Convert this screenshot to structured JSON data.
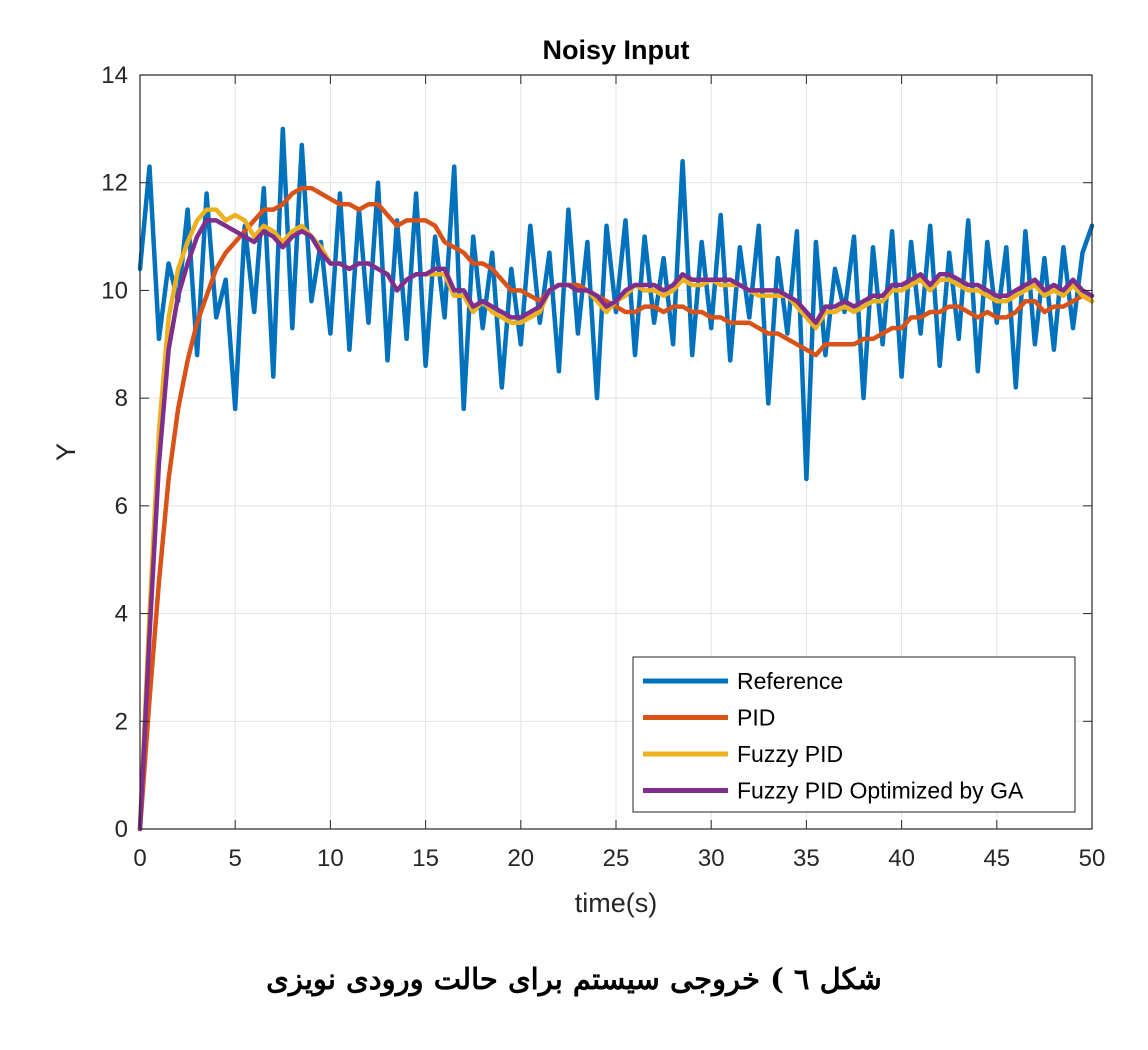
{
  "chart_data": {
    "type": "line",
    "title": "Noisy Input",
    "xlabel": "time(s)",
    "ylabel": "Y",
    "xlim": [
      0,
      50
    ],
    "ylim": [
      0,
      14
    ],
    "xticks": [
      0,
      5,
      10,
      15,
      20,
      25,
      30,
      35,
      40,
      45,
      50
    ],
    "yticks": [
      0,
      2,
      4,
      6,
      8,
      10,
      12,
      14
    ],
    "grid": true,
    "legend_position": "bottom-right",
    "series": [
      {
        "name": "Reference",
        "color": "#0072BD",
        "x": [
          0,
          0.5,
          1,
          1.5,
          2,
          2.5,
          3,
          3.5,
          4,
          4.5,
          5,
          5.5,
          6,
          6.5,
          7,
          7.5,
          8,
          8.5,
          9,
          9.5,
          10,
          10.5,
          11,
          11.5,
          12,
          12.5,
          13,
          13.5,
          14,
          14.5,
          15,
          15.5,
          16,
          16.5,
          17,
          17.5,
          18,
          18.5,
          19,
          19.5,
          20,
          20.5,
          21,
          21.5,
          22,
          22.5,
          23,
          23.5,
          24,
          24.5,
          25,
          25.5,
          26,
          26.5,
          27,
          27.5,
          28,
          28.5,
          29,
          29.5,
          30,
          30.5,
          31,
          31.5,
          32,
          32.5,
          33,
          33.5,
          34,
          34.5,
          35,
          35.5,
          36,
          36.5,
          37,
          37.5,
          38,
          38.5,
          39,
          39.5,
          40,
          40.5,
          41,
          41.5,
          42,
          42.5,
          43,
          43.5,
          44,
          44.5,
          45,
          45.5,
          46,
          46.5,
          47,
          47.5,
          48,
          48.5,
          49,
          49.5,
          50
        ],
        "values": [
          10.4,
          12.3,
          9.1,
          10.5,
          9.8,
          11.5,
          8.8,
          11.8,
          9.5,
          10.2,
          7.8,
          11.2,
          9.6,
          11.9,
          8.4,
          13.0,
          9.3,
          12.7,
          9.8,
          10.9,
          9.2,
          11.8,
          8.9,
          11.5,
          9.4,
          12.0,
          8.7,
          11.3,
          9.1,
          11.8,
          8.6,
          11.0,
          9.5,
          12.3,
          7.8,
          11.0,
          9.3,
          10.7,
          8.2,
          10.4,
          9.0,
          11.2,
          9.4,
          10.7,
          8.5,
          11.5,
          9.2,
          10.9,
          8.0,
          11.2,
          9.6,
          11.3,
          8.8,
          11.0,
          9.4,
          10.6,
          9.0,
          12.4,
          8.8,
          10.9,
          9.3,
          11.4,
          8.7,
          10.8,
          9.5,
          11.2,
          7.9,
          10.6,
          9.2,
          11.1,
          6.5,
          10.9,
          8.8,
          10.4,
          9.6,
          11.0,
          8.0,
          10.8,
          9.0,
          11.1,
          8.4,
          10.9,
          9.2,
          11.2,
          8.6,
          10.7,
          9.1,
          11.3,
          8.5,
          10.9,
          9.4,
          10.8,
          8.2,
          11.1,
          9.0,
          10.6,
          8.9,
          10.8,
          9.3,
          10.7,
          11.2
        ]
      },
      {
        "name": "PID",
        "color": "#D95319",
        "x": [
          0,
          0.5,
          1,
          1.5,
          2,
          2.5,
          3,
          3.5,
          4,
          4.5,
          5,
          5.5,
          6,
          6.5,
          7,
          7.5,
          8,
          8.5,
          9,
          9.5,
          10,
          10.5,
          11,
          11.5,
          12,
          12.5,
          13,
          13.5,
          14,
          14.5,
          15,
          15.5,
          16,
          16.5,
          17,
          17.5,
          18,
          18.5,
          19,
          19.5,
          20,
          20.5,
          21,
          21.5,
          22,
          22.5,
          23,
          23.5,
          24,
          24.5,
          25,
          25.5,
          26,
          26.5,
          27,
          27.5,
          28,
          28.5,
          29,
          29.5,
          30,
          30.5,
          31,
          31.5,
          32,
          32.5,
          33,
          33.5,
          34,
          34.5,
          35,
          35.5,
          36,
          36.5,
          37,
          37.5,
          38,
          38.5,
          39,
          39.5,
          40,
          40.5,
          41,
          41.5,
          42,
          42.5,
          43,
          43.5,
          44,
          44.5,
          45,
          45.5,
          46,
          46.5,
          47,
          47.5,
          48,
          48.5,
          49,
          49.5,
          50
        ],
        "values": [
          0,
          2.4,
          4.6,
          6.5,
          7.8,
          8.7,
          9.4,
          9.9,
          10.4,
          10.7,
          10.9,
          11.1,
          11.3,
          11.5,
          11.5,
          11.6,
          11.8,
          11.9,
          11.9,
          11.8,
          11.7,
          11.6,
          11.6,
          11.5,
          11.6,
          11.6,
          11.4,
          11.2,
          11.3,
          11.3,
          11.3,
          11.2,
          10.9,
          10.8,
          10.7,
          10.5,
          10.5,
          10.4,
          10.2,
          10.0,
          10.0,
          9.9,
          9.8,
          10.0,
          10.1,
          10.1,
          10.1,
          10.0,
          9.9,
          9.8,
          9.7,
          9.6,
          9.6,
          9.7,
          9.7,
          9.6,
          9.7,
          9.7,
          9.6,
          9.6,
          9.5,
          9.5,
          9.4,
          9.4,
          9.4,
          9.3,
          9.2,
          9.2,
          9.1,
          9.0,
          8.9,
          8.8,
          9.0,
          9.0,
          9.0,
          9.0,
          9.1,
          9.1,
          9.2,
          9.3,
          9.3,
          9.5,
          9.5,
          9.6,
          9.6,
          9.7,
          9.7,
          9.6,
          9.5,
          9.6,
          9.5,
          9.5,
          9.6,
          9.8,
          9.8,
          9.6,
          9.7,
          9.7,
          9.8,
          9.9,
          9.8
        ]
      },
      {
        "name": "Fuzzy PID",
        "color": "#EDB120",
        "x": [
          0,
          0.5,
          1,
          1.5,
          2,
          2.5,
          3,
          3.5,
          4,
          4.5,
          5,
          5.5,
          6,
          6.5,
          7,
          7.5,
          8,
          8.5,
          9,
          9.5,
          10,
          10.5,
          11,
          11.5,
          12,
          12.5,
          13,
          13.5,
          14,
          14.5,
          15,
          15.5,
          16,
          16.5,
          17,
          17.5,
          18,
          18.5,
          19,
          19.5,
          20,
          20.5,
          21,
          21.5,
          22,
          22.5,
          23,
          23.5,
          24,
          24.5,
          25,
          25.5,
          26,
          26.5,
          27,
          27.5,
          28,
          28.5,
          29,
          29.5,
          30,
          30.5,
          31,
          31.5,
          32,
          32.5,
          33,
          33.5,
          34,
          34.5,
          35,
          35.5,
          36,
          36.5,
          37,
          37.5,
          38,
          38.5,
          39,
          39.5,
          40,
          40.5,
          41,
          41.5,
          42,
          42.5,
          43,
          43.5,
          44,
          44.5,
          45,
          45.5,
          46,
          46.5,
          47,
          47.5,
          48,
          48.5,
          49,
          49.5,
          50
        ],
        "values": [
          0,
          4.0,
          7.4,
          9.5,
          10.4,
          10.9,
          11.3,
          11.5,
          11.5,
          11.3,
          11.4,
          11.3,
          11.0,
          11.2,
          11.1,
          10.9,
          11.1,
          11.2,
          11.0,
          10.8,
          10.5,
          10.5,
          10.4,
          10.5,
          10.5,
          10.4,
          10.3,
          10.0,
          10.2,
          10.3,
          10.3,
          10.3,
          10.3,
          9.9,
          9.9,
          9.6,
          9.8,
          9.6,
          9.5,
          9.4,
          9.4,
          9.5,
          9.6,
          10.0,
          10.1,
          10.1,
          10.0,
          10.0,
          9.8,
          9.6,
          9.8,
          9.9,
          10.1,
          10.0,
          10.0,
          9.9,
          10.0,
          10.2,
          10.1,
          10.1,
          10.2,
          10.1,
          10.1,
          10.1,
          10.0,
          9.9,
          9.9,
          9.9,
          9.9,
          9.7,
          9.5,
          9.3,
          9.6,
          9.6,
          9.7,
          9.6,
          9.7,
          9.8,
          9.8,
          10.0,
          10.0,
          10.1,
          10.2,
          10.0,
          10.2,
          10.2,
          10.1,
          10.0,
          10.0,
          9.9,
          9.8,
          9.8,
          9.9,
          10.0,
          10.1,
          9.9,
          10.0,
          9.9,
          10.1,
          9.9,
          9.8
        ]
      },
      {
        "name": "Fuzzy PID Optimized by GA",
        "color": "#7E2F8E",
        "x": [
          0,
          0.5,
          1,
          1.5,
          2,
          2.5,
          3,
          3.5,
          4,
          4.5,
          5,
          5.5,
          6,
          6.5,
          7,
          7.5,
          8,
          8.5,
          9,
          9.5,
          10,
          10.5,
          11,
          11.5,
          12,
          12.5,
          13,
          13.5,
          14,
          14.5,
          15,
          15.5,
          16,
          16.5,
          17,
          17.5,
          18,
          18.5,
          19,
          19.5,
          20,
          20.5,
          21,
          21.5,
          22,
          22.5,
          23,
          23.5,
          24,
          24.5,
          25,
          25.5,
          26,
          26.5,
          27,
          27.5,
          28,
          28.5,
          29,
          29.5,
          30,
          30.5,
          31,
          31.5,
          32,
          32.5,
          33,
          33.5,
          34,
          34.5,
          35,
          35.5,
          36,
          36.5,
          37,
          37.5,
          38,
          38.5,
          39,
          39.5,
          40,
          40.5,
          41,
          41.5,
          42,
          42.5,
          43,
          43.5,
          44,
          44.5,
          45,
          45.5,
          46,
          46.5,
          47,
          47.5,
          48,
          48.5,
          49,
          49.5,
          50
        ],
        "values": [
          0,
          3.6,
          6.8,
          8.9,
          9.9,
          10.5,
          11.0,
          11.3,
          11.3,
          11.2,
          11.1,
          11.0,
          10.9,
          11.1,
          11.0,
          10.8,
          11.0,
          11.1,
          11.0,
          10.7,
          10.5,
          10.5,
          10.4,
          10.5,
          10.5,
          10.4,
          10.3,
          10.0,
          10.2,
          10.3,
          10.3,
          10.4,
          10.4,
          10.0,
          10.0,
          9.7,
          9.8,
          9.7,
          9.6,
          9.5,
          9.5,
          9.6,
          9.7,
          10.0,
          10.1,
          10.1,
          10.0,
          10.0,
          9.9,
          9.7,
          9.8,
          10.0,
          10.1,
          10.1,
          10.1,
          10.0,
          10.1,
          10.3,
          10.2,
          10.2,
          10.2,
          10.2,
          10.2,
          10.1,
          10.0,
          10.0,
          10.0,
          10.0,
          9.9,
          9.8,
          9.6,
          9.4,
          9.7,
          9.7,
          9.8,
          9.7,
          9.8,
          9.9,
          9.9,
          10.1,
          10.1,
          10.2,
          10.3,
          10.1,
          10.3,
          10.3,
          10.2,
          10.1,
          10.1,
          10.0,
          9.9,
          9.9,
          10.0,
          10.1,
          10.2,
          10.0,
          10.1,
          10.0,
          10.2,
          10.0,
          9.9
        ]
      }
    ]
  },
  "caption": "شکل ٦ ) خروجی سیستم برای حالت ورودی نویزی"
}
